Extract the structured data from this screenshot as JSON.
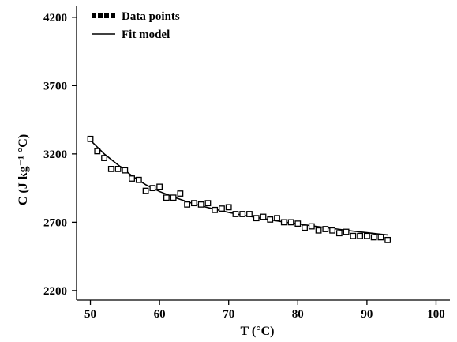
{
  "chart_data": {
    "type": "scatter",
    "xlabel": "T (°C)",
    "ylabel": "C (J kg⁻¹ °C)",
    "xlim": [
      48,
      102
    ],
    "ylim": [
      2130,
      4280
    ],
    "xticks": [
      50,
      60,
      70,
      80,
      90,
      100
    ],
    "yticks": [
      2200,
      2700,
      3200,
      3700,
      4200
    ],
    "legend_position": "top-left",
    "grid": false,
    "legend": [
      {
        "label": "Data points",
        "style": "markers"
      },
      {
        "label": "Fit model",
        "style": "line"
      }
    ],
    "series": [
      {
        "name": "Data points",
        "kind": "markers",
        "x": [
          50,
          51,
          52,
          53,
          54,
          55,
          56,
          57,
          58,
          59,
          60,
          61,
          62,
          63,
          64,
          65,
          66,
          67,
          68,
          69,
          70,
          71,
          72,
          73,
          74,
          75,
          76,
          77,
          78,
          79,
          80,
          81,
          82,
          83,
          84,
          85,
          86,
          87,
          88,
          89,
          90,
          91,
          92,
          93
        ],
        "y": [
          3310,
          3220,
          3170,
          3090,
          3090,
          3080,
          3020,
          3010,
          2930,
          2950,
          2960,
          2880,
          2880,
          2910,
          2830,
          2840,
          2830,
          2840,
          2790,
          2800,
          2810,
          2760,
          2760,
          2760,
          2730,
          2740,
          2720,
          2730,
          2700,
          2700,
          2690,
          2660,
          2670,
          2640,
          2650,
          2640,
          2620,
          2630,
          2600,
          2600,
          2600,
          2590,
          2590,
          2570
        ]
      },
      {
        "name": "Fit model",
        "kind": "line",
        "x": [
          50,
          52,
          54,
          56,
          58,
          60,
          62,
          64,
          66,
          68,
          70,
          72,
          74,
          76,
          78,
          80,
          82,
          84,
          86,
          88,
          90,
          92,
          93
        ],
        "y": [
          3300,
          3200,
          3120,
          3040,
          2975,
          2925,
          2885,
          2850,
          2820,
          2795,
          2772,
          2752,
          2735,
          2718,
          2702,
          2688,
          2674,
          2661,
          2648,
          2635,
          2624,
          2612,
          2607
        ]
      }
    ]
  }
}
